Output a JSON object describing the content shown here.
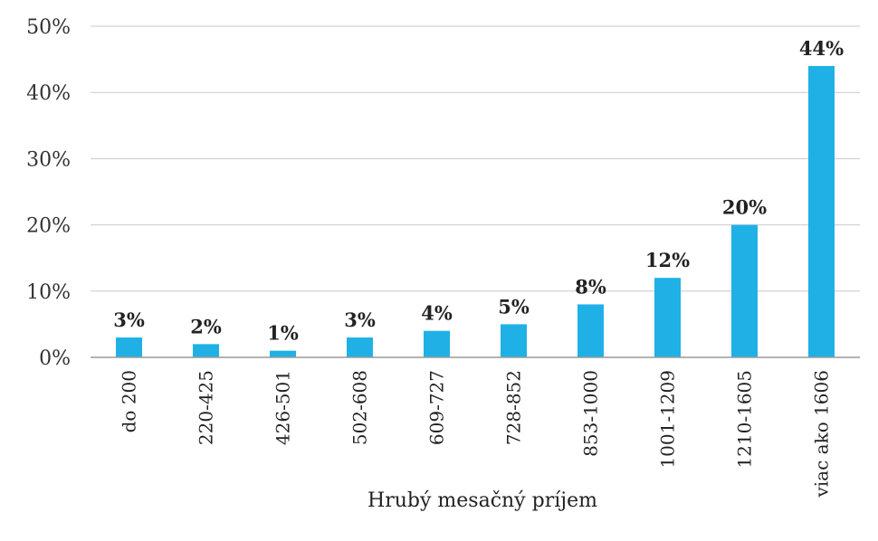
{
  "chart_data": {
    "type": "bar",
    "title": "",
    "xlabel": "Hrubý mesačný príjem",
    "ylabel": "",
    "ylim": [
      0,
      50
    ],
    "yticks": [
      "0%",
      "10%",
      "20%",
      "30%",
      "40%",
      "50%"
    ],
    "grid": true,
    "bar_color": "#1fb1e6",
    "categories": [
      "do 200",
      "220-425",
      "426-501",
      "502-608",
      "609-727",
      "728-852",
      "853-1000",
      "1001-1209",
      "1210-1605",
      "viac ako 1606"
    ],
    "values": [
      3,
      2,
      1,
      3,
      4,
      5,
      8,
      12,
      20,
      44
    ],
    "data_labels": [
      "3%",
      "2%",
      "1%",
      "3%",
      "4%",
      "5%",
      "8%",
      "12%",
      "20%",
      "44%"
    ]
  }
}
